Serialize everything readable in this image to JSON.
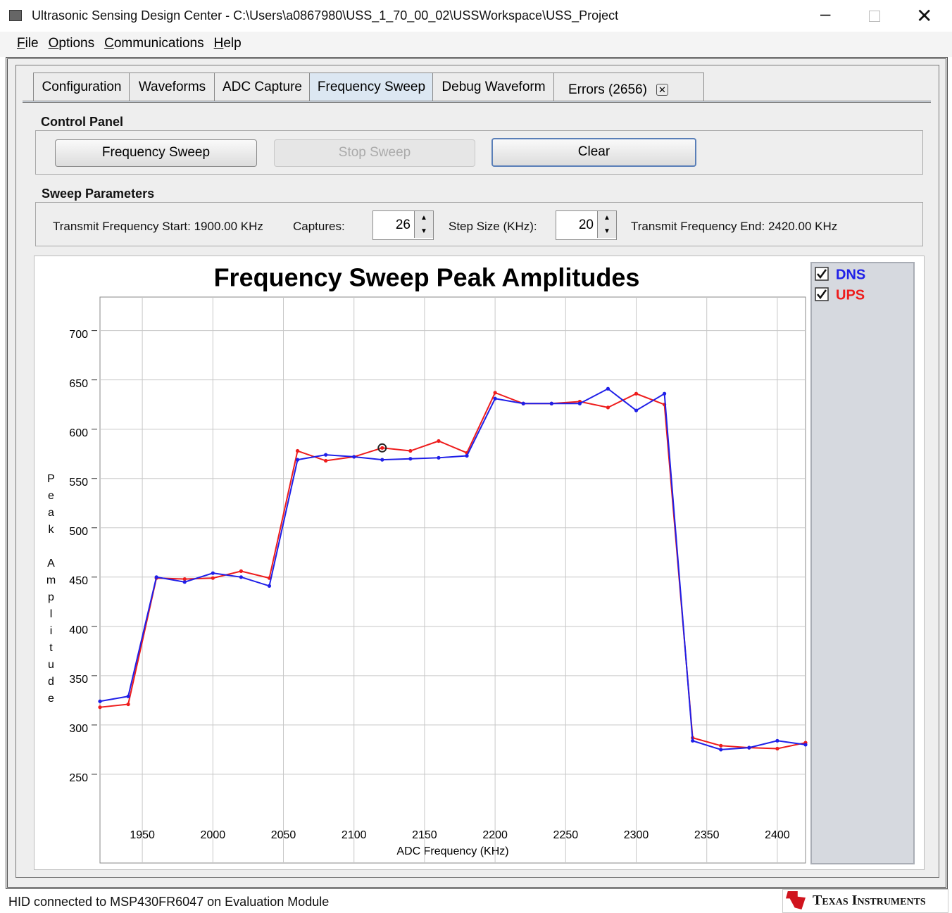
{
  "window": {
    "title": "Ultrasonic Sensing Design Center - C:\\Users\\a0867980\\USS_1_70_00_02\\USSWorkspace\\USS_Project"
  },
  "menu": [
    "File",
    "Options",
    "Communications",
    "Help"
  ],
  "tabs": [
    "Configuration",
    "Waveforms",
    "ADC Capture",
    "Frequency Sweep",
    "Debug Waveform",
    "Errors (2656)"
  ],
  "control_panel": {
    "title": "Control Panel",
    "buttons": [
      "Frequency Sweep",
      "Stop Sweep",
      "Clear"
    ]
  },
  "sweep_parameters": {
    "title": "Sweep Parameters",
    "start_label": "Transmit Frequency Start: 1900.00 KHz",
    "captures_label": "Captures:",
    "captures": 26,
    "step_label": "Step Size (KHz):",
    "step": 20,
    "end_label": "Transmit Frequency End: 2420.00 KHz"
  },
  "chart_data": {
    "type": "line",
    "title": "Frequency Sweep Peak Amplitudes",
    "x_label": "ADC Frequency (KHz)",
    "y_label": "Peak Amplitude",
    "x": [
      1920,
      1940,
      1960,
      1980,
      2000,
      2020,
      2040,
      2060,
      2080,
      2100,
      2120,
      2140,
      2160,
      2180,
      2200,
      2220,
      2240,
      2260,
      2280,
      2300,
      2320,
      2340,
      2360,
      2380,
      2400,
      2420
    ],
    "series": [
      {
        "name": "DNS",
        "color": "#1f1fe8",
        "values": [
          324,
          329,
          450,
          445,
          454,
          450,
          441,
          569,
          574,
          572,
          569,
          570,
          571,
          573,
          631,
          626,
          626,
          626,
          641,
          619,
          636,
          284,
          275,
          277,
          284,
          280
        ]
      },
      {
        "name": "UPS",
        "color": "#ee1c1c",
        "values": [
          318,
          321,
          449,
          448,
          449,
          456,
          449,
          578,
          568,
          572,
          581,
          578,
          588,
          576,
          637,
          626,
          626,
          628,
          622,
          636,
          625,
          287,
          279,
          277,
          276,
          282
        ]
      }
    ],
    "xlim": [
      1920,
      2420
    ],
    "xticks": [
      1950,
      2000,
      2050,
      2100,
      2150,
      2200,
      2250,
      2300,
      2350,
      2400
    ],
    "ylim": [
      160,
      734
    ],
    "yticks": [
      250,
      300,
      350,
      400,
      450,
      500,
      550,
      600,
      650,
      700
    ],
    "grid": true
  },
  "status_bar": "HID connected to MSP430FR6047 on Evaluation Module",
  "logo": "Texas Instruments"
}
